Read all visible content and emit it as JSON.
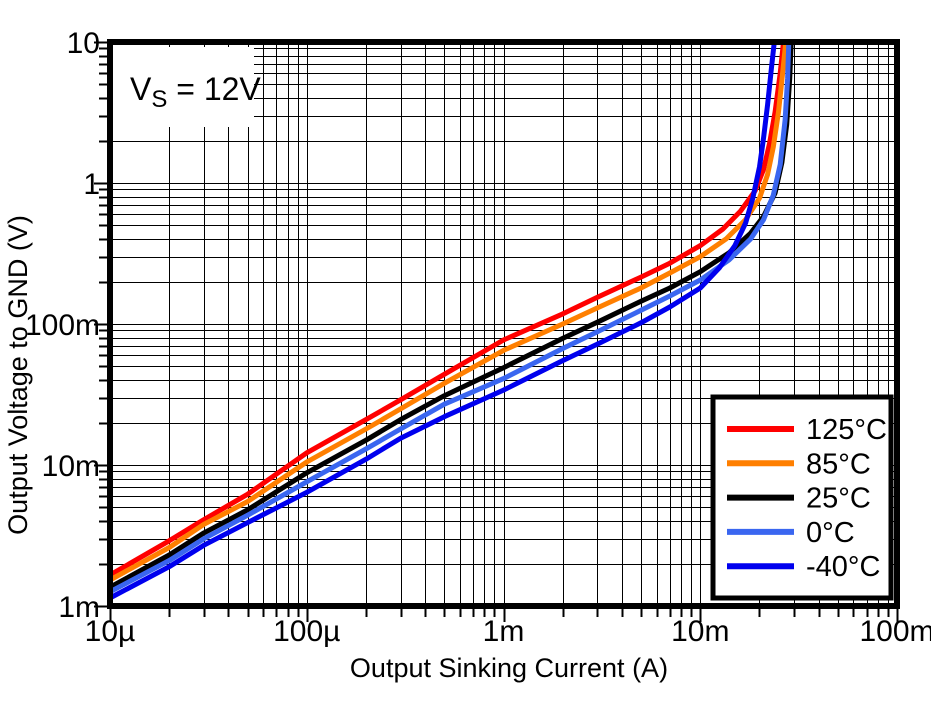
{
  "figure": {
    "background": "#ffffff",
    "grid_color": "#000000"
  },
  "chart_data": {
    "type": "line",
    "title": "",
    "xlabel": "Output Sinking Current (A)",
    "ylabel": "Output Voltage to GND (V)",
    "x_scale": "log",
    "y_scale": "log",
    "xlim": [
      1e-05,
      0.1
    ],
    "ylim": [
      0.001,
      10
    ],
    "grid": "log major+minor, both axes, black",
    "legend_position": "lower-right",
    "annotation": {
      "main": "V",
      "sub": "S",
      "rest": " = 12V"
    },
    "x_ticks": [
      {
        "value": 1e-05,
        "label": "10µ"
      },
      {
        "value": 0.0001,
        "label": "100µ"
      },
      {
        "value": 0.001,
        "label": "1m"
      },
      {
        "value": 0.01,
        "label": "10m"
      },
      {
        "value": 0.1,
        "label": "100m"
      }
    ],
    "y_ticks": [
      {
        "value": 0.001,
        "label": "1m"
      },
      {
        "value": 0.01,
        "label": "10m"
      },
      {
        "value": 0.1,
        "label": "100m"
      },
      {
        "value": 1,
        "label": "1"
      },
      {
        "value": 10,
        "label": "10"
      }
    ],
    "series": [
      {
        "name": "125°C",
        "color": "#ff0000",
        "points": [
          [
            1e-05,
            0.00166
          ],
          [
            2e-05,
            0.0029
          ],
          [
            3e-05,
            0.0041
          ],
          [
            5e-05,
            0.0062
          ],
          [
            0.0001,
            0.0122
          ],
          [
            0.0002,
            0.021
          ],
          [
            0.0003,
            0.029
          ],
          [
            0.0005,
            0.044
          ],
          [
            0.001,
            0.077
          ],
          [
            0.002,
            0.118
          ],
          [
            0.003,
            0.155
          ],
          [
            0.005,
            0.215
          ],
          [
            0.007,
            0.27
          ],
          [
            0.01,
            0.36
          ],
          [
            0.013,
            0.47
          ],
          [
            0.016,
            0.63
          ],
          [
            0.019,
            0.88
          ],
          [
            0.021,
            1.25
          ],
          [
            0.0225,
            1.9
          ],
          [
            0.024,
            3.2
          ],
          [
            0.0255,
            6.0
          ],
          [
            0.0265,
            10
          ]
        ]
      },
      {
        "name": "85°C",
        "color": "#ff7f00",
        "points": [
          [
            1e-05,
            0.00153
          ],
          [
            2e-05,
            0.0026
          ],
          [
            3e-05,
            0.0038
          ],
          [
            5e-05,
            0.0055
          ],
          [
            0.0001,
            0.0105
          ],
          [
            0.0002,
            0.018
          ],
          [
            0.0003,
            0.025
          ],
          [
            0.0005,
            0.038
          ],
          [
            0.001,
            0.065
          ],
          [
            0.002,
            0.1
          ],
          [
            0.003,
            0.13
          ],
          [
            0.005,
            0.18
          ],
          [
            0.007,
            0.23
          ],
          [
            0.01,
            0.3
          ],
          [
            0.0135,
            0.4
          ],
          [
            0.017,
            0.55
          ],
          [
            0.02,
            0.78
          ],
          [
            0.022,
            1.15
          ],
          [
            0.0235,
            1.8
          ],
          [
            0.025,
            3.2
          ],
          [
            0.0262,
            6.0
          ],
          [
            0.0272,
            10
          ]
        ]
      },
      {
        "name": "25°C",
        "color": "#000000",
        "points": [
          [
            1e-05,
            0.00136
          ],
          [
            2e-05,
            0.0023
          ],
          [
            3e-05,
            0.0033
          ],
          [
            5e-05,
            0.0048
          ],
          [
            0.0001,
            0.0088
          ],
          [
            0.0002,
            0.015
          ],
          [
            0.0003,
            0.021
          ],
          [
            0.0005,
            0.031
          ],
          [
            0.001,
            0.049
          ],
          [
            0.002,
            0.079
          ],
          [
            0.003,
            0.103
          ],
          [
            0.005,
            0.145
          ],
          [
            0.007,
            0.18
          ],
          [
            0.01,
            0.235
          ],
          [
            0.014,
            0.32
          ],
          [
            0.018,
            0.44
          ],
          [
            0.021,
            0.58
          ],
          [
            0.024,
            0.85
          ],
          [
            0.026,
            1.4
          ],
          [
            0.0275,
            2.6
          ],
          [
            0.0285,
            5.5
          ],
          [
            0.029,
            10
          ]
        ]
      },
      {
        "name": "0°C",
        "color": "#3a66f0",
        "points": [
          [
            1e-05,
            0.00126
          ],
          [
            2e-05,
            0.0021
          ],
          [
            3e-05,
            0.003
          ],
          [
            5e-05,
            0.0044
          ],
          [
            0.0001,
            0.0076
          ],
          [
            0.0002,
            0.013
          ],
          [
            0.0003,
            0.018
          ],
          [
            0.0005,
            0.027
          ],
          [
            0.001,
            0.041
          ],
          [
            0.002,
            0.067
          ],
          [
            0.003,
            0.088
          ],
          [
            0.005,
            0.125
          ],
          [
            0.007,
            0.158
          ],
          [
            0.01,
            0.205
          ],
          [
            0.014,
            0.285
          ],
          [
            0.018,
            0.4
          ],
          [
            0.021,
            0.55
          ],
          [
            0.0235,
            0.82
          ],
          [
            0.0255,
            1.35
          ],
          [
            0.027,
            2.8
          ],
          [
            0.0278,
            5.5
          ],
          [
            0.0282,
            10
          ]
        ]
      },
      {
        "name": "-40°C",
        "color": "#0000ee",
        "points": [
          [
            1e-05,
            0.00114
          ],
          [
            2e-05,
            0.0019
          ],
          [
            3e-05,
            0.0027
          ],
          [
            5e-05,
            0.0039
          ],
          [
            0.0001,
            0.0064
          ],
          [
            0.0002,
            0.011
          ],
          [
            0.0003,
            0.0155
          ],
          [
            0.0005,
            0.022
          ],
          [
            0.001,
            0.034
          ],
          [
            0.002,
            0.055
          ],
          [
            0.003,
            0.072
          ],
          [
            0.005,
            0.102
          ],
          [
            0.007,
            0.132
          ],
          [
            0.01,
            0.18
          ],
          [
            0.0125,
            0.25
          ],
          [
            0.015,
            0.36
          ],
          [
            0.017,
            0.52
          ],
          [
            0.0185,
            0.78
          ],
          [
            0.02,
            1.3
          ],
          [
            0.021,
            2.1
          ],
          [
            0.022,
            3.6
          ],
          [
            0.023,
            6.5
          ],
          [
            0.0238,
            10
          ]
        ]
      }
    ]
  }
}
